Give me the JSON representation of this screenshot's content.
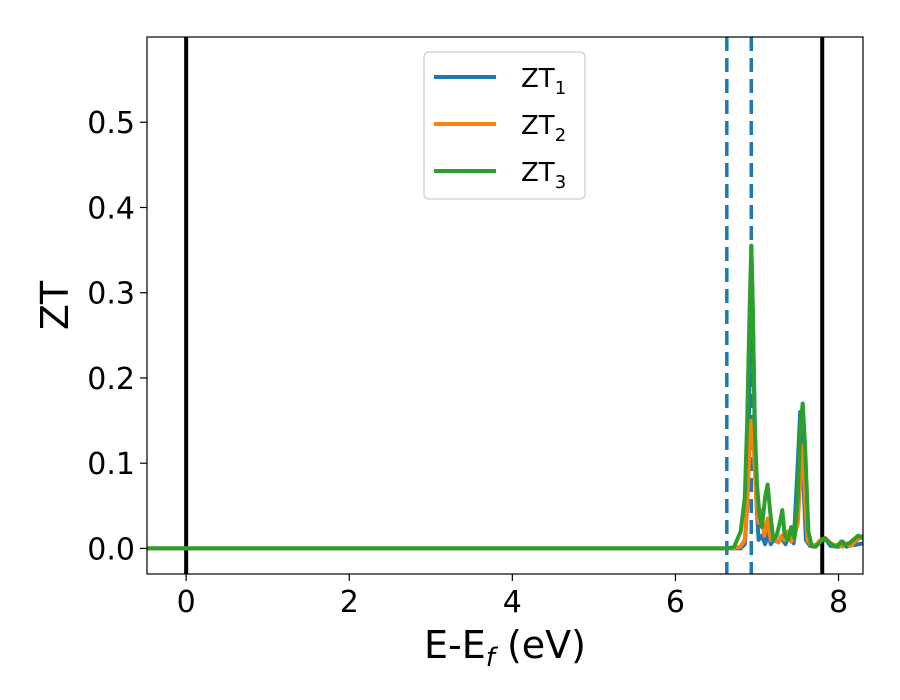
{
  "chart_data": {
    "type": "line",
    "xlabel": {
      "main": "E-E",
      "sub": "f",
      "suffix": " (eV)"
    },
    "ylabel": "ZT",
    "xlim": [
      -0.48,
      8.3
    ],
    "ylim": [
      -0.03,
      0.6
    ],
    "xticks": [
      0,
      2,
      4,
      6,
      8
    ],
    "yticks": [
      0.0,
      0.1,
      0.2,
      0.3,
      0.4,
      0.5
    ],
    "xtick_labels": [
      "0",
      "2",
      "4",
      "6",
      "8"
    ],
    "ytick_labels": [
      "0.0",
      "0.1",
      "0.2",
      "0.3",
      "0.4",
      "0.5"
    ],
    "grid": false,
    "legend_position": "top-center",
    "vertical_lines": [
      {
        "x": 0.0,
        "style": "solid",
        "color": "#000000"
      },
      {
        "x": 7.8,
        "style": "solid",
        "color": "#000000"
      },
      {
        "x": 6.63,
        "style": "dashed",
        "color": "#1f77b4"
      },
      {
        "x": 6.93,
        "style": "dashed",
        "color": "#1f77b4"
      }
    ],
    "series": [
      {
        "name": "ZT",
        "sub": "1",
        "color": "#1f77b4",
        "x": [
          -0.48,
          6.6,
          6.7,
          6.8,
          6.85,
          6.88,
          6.91,
          6.93,
          6.96,
          6.99,
          7.02,
          7.06,
          7.1,
          7.14,
          7.17,
          7.2,
          7.25,
          7.3,
          7.35,
          7.4,
          7.45,
          7.5,
          7.53,
          7.56,
          7.6,
          7.65,
          7.7,
          7.8,
          7.85,
          7.9,
          8.0,
          8.05,
          8.1,
          8.15,
          8.2,
          8.3
        ],
        "y": [
          0,
          0,
          0,
          0,
          0.005,
          0.05,
          0.2,
          0.355,
          0.22,
          0.06,
          0.01,
          0.015,
          0.005,
          0.018,
          0.005,
          0.01,
          0.008,
          0.012,
          0.005,
          0.02,
          0.006,
          0.1,
          0.16,
          0.1,
          0.01,
          0.003,
          0.002,
          0.01,
          0.01,
          0.003,
          0.002,
          0.008,
          0.002,
          0.005,
          0.004,
          0.006
        ]
      },
      {
        "name": "ZT",
        "sub": "2",
        "color": "#ff7f0e",
        "x": [
          -0.48,
          6.6,
          6.7,
          6.8,
          6.85,
          6.88,
          6.91,
          6.93,
          6.96,
          6.99,
          7.02,
          7.05,
          7.09,
          7.13,
          7.17,
          7.21,
          7.26,
          7.3,
          7.34,
          7.38,
          7.42,
          7.46,
          7.5,
          7.54,
          7.56,
          7.58,
          7.62,
          7.66,
          7.72,
          7.78,
          7.84,
          7.9,
          7.95,
          8.0,
          8.05,
          8.1,
          8.15,
          8.2,
          8.3
        ],
        "y": [
          0,
          0,
          0,
          0.002,
          0.01,
          0.05,
          0.12,
          0.15,
          0.12,
          0.06,
          0.03,
          0.045,
          0.015,
          0.035,
          0.01,
          0.012,
          0.007,
          0.015,
          0.01,
          0.02,
          0.008,
          0.015,
          0.03,
          0.1,
          0.12,
          0.08,
          0.01,
          0.004,
          0.004,
          0.01,
          0.012,
          0.006,
          0.004,
          0.004,
          0.002,
          0.006,
          0.003,
          0.008,
          0.015
        ]
      },
      {
        "name": "ZT",
        "sub": "3",
        "color": "#2ca02c",
        "x": [
          -0.48,
          6.6,
          6.65,
          6.72,
          6.8,
          6.85,
          6.88,
          6.91,
          6.93,
          6.95,
          6.97,
          7.0,
          7.03,
          7.06,
          7.1,
          7.13,
          7.16,
          7.2,
          7.24,
          7.28,
          7.31,
          7.34,
          7.38,
          7.42,
          7.46,
          7.5,
          7.53,
          7.56,
          7.59,
          7.63,
          7.67,
          7.72,
          7.78,
          7.83,
          7.88,
          7.93,
          7.98,
          8.03,
          8.08,
          8.13,
          8.18,
          8.24,
          8.3
        ],
        "y": [
          0,
          0,
          0,
          0.002,
          0.02,
          0.06,
          0.15,
          0.28,
          0.355,
          0.28,
          0.15,
          0.075,
          0.04,
          0.025,
          0.06,
          0.075,
          0.045,
          0.01,
          0.015,
          0.03,
          0.045,
          0.015,
          0.01,
          0.025,
          0.012,
          0.06,
          0.14,
          0.17,
          0.12,
          0.02,
          0.003,
          0.002,
          0.008,
          0.012,
          0.008,
          0.003,
          0.002,
          0.008,
          0.004,
          0.006,
          0.01,
          0.015,
          0.012
        ]
      }
    ]
  }
}
